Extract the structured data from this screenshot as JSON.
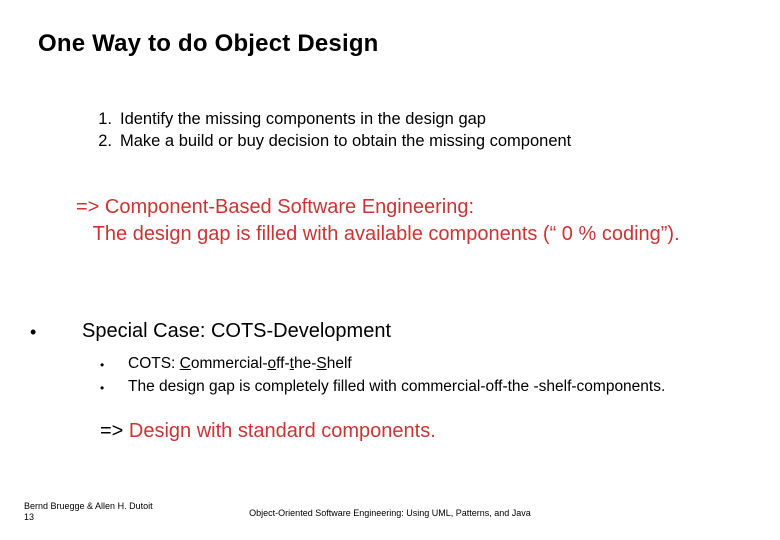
{
  "colors": {
    "background": "#ffffff",
    "text": "#000000",
    "accent": "#cc3333"
  },
  "title": "One Way to do Object Design",
  "steps": {
    "items": [
      {
        "num": "1.",
        "text": "Identify the missing components in the design gap"
      },
      {
        "num": "2.",
        "text": "Make a build or buy decision to obtain the missing component"
      }
    ]
  },
  "cbse": {
    "line1": "=>  Component-Based Software Engineering:",
    "line2": "   The design gap is filled with available components (“ 0 % coding”)."
  },
  "special": {
    "bullet": "•",
    "heading": "Special Case: COTS-Development",
    "items": [
      {
        "bullet": "•",
        "prefix": "COTS: ",
        "c": "C",
        "mid1": "ommercial-",
        "o": "o",
        "mid2": "ff-",
        "t": "t",
        "mid3": "he-",
        "s": "S",
        "suffix": "helf"
      },
      {
        "bullet": "•",
        "text": "The design gap is completely filled with commercial-off-the -shelf-components."
      }
    ]
  },
  "conclusion": {
    "arrow": "=> ",
    "text": "Design with standard components."
  },
  "footer": {
    "authors": "Bernd Bruegge & Allen H. Dutoit",
    "page": "13",
    "center": "Object-Oriented Software Engineering: Using UML, Patterns, and Java"
  }
}
